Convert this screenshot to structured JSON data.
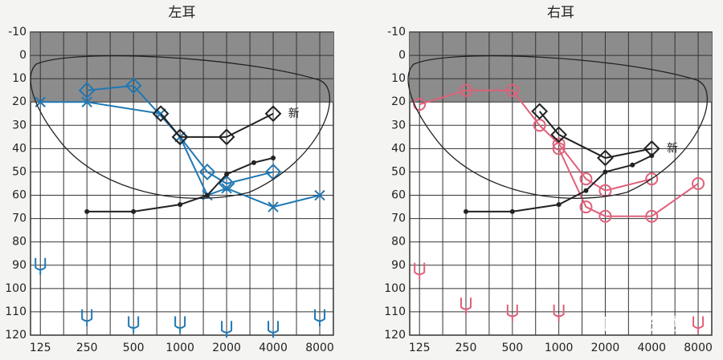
{
  "chart_data": [
    {
      "type": "line",
      "title": "左耳",
      "note": "新",
      "log_x": true,
      "grid": true,
      "xlim": [
        108,
        9800
      ],
      "xticks": [
        125,
        250,
        500,
        1000,
        2000,
        4000,
        8000
      ],
      "ylim": [
        -10,
        120
      ],
      "yticks": [
        -10,
        0,
        10,
        20,
        30,
        40,
        50,
        60,
        70,
        80,
        90,
        100,
        110,
        120
      ],
      "inverted_y": true,
      "shaded_band": [
        -10,
        20
      ],
      "series": [
        {
          "color": "#1f78b4",
          "marker": "x",
          "x": [
            125,
            250,
            750,
            1000,
            1500,
            2000,
            4000,
            8000
          ],
          "values": [
            20,
            20,
            25,
            35,
            60,
            57,
            65,
            60
          ]
        },
        {
          "color": "#1f78b4",
          "marker": "diamond",
          "x": [
            250,
            500,
            1000,
            1500,
            2000,
            4000
          ],
          "values": [
            15,
            13,
            35,
            50,
            55,
            50
          ]
        },
        {
          "color": "#222222",
          "marker": "diamond",
          "x": [
            750,
            1000,
            2000,
            4000
          ],
          "values": [
            25,
            35,
            35,
            25
          ]
        },
        {
          "color": "#222222",
          "marker": "dot",
          "x": [
            250,
            500,
            1000,
            1500,
            2000,
            3000,
            4000
          ],
          "values": [
            67,
            67,
            64,
            60,
            51,
            46,
            44
          ]
        },
        {
          "color": "#1f78b4",
          "marker": "u",
          "line": false,
          "x": [
            125,
            250,
            500,
            1000,
            2000,
            4000,
            8000
          ],
          "values": [
            90,
            112,
            115,
            115,
            117,
            117,
            112
          ]
        }
      ]
    },
    {
      "type": "line",
      "title": "右耳",
      "note": "新",
      "log_x": true,
      "grid": true,
      "xlim": [
        108,
        9800
      ],
      "xticks": [
        125,
        250,
        500,
        1000,
        2000,
        4000,
        8000
      ],
      "ylim": [
        -10,
        120
      ],
      "yticks": [
        -10,
        0,
        10,
        20,
        30,
        40,
        50,
        60,
        70,
        80,
        90,
        100,
        110,
        120
      ],
      "inverted_y": true,
      "shaded_band": [
        -10,
        20
      ],
      "series": [
        {
          "color": "#e0607a",
          "marker": "circle",
          "x": [
            125,
            250,
            500,
            750,
            1000,
            1500,
            2000,
            4000
          ],
          "values": [
            21,
            15,
            15,
            30,
            38,
            53,
            58,
            53
          ]
        },
        {
          "color": "#e0607a",
          "marker": "circle",
          "x": [
            1000,
            1500,
            2000,
            4000,
            8000
          ],
          "values": [
            40,
            65,
            69,
            69,
            55
          ]
        },
        {
          "color": "#222222",
          "marker": "diamond",
          "x": [
            750,
            1000,
            2000,
            4000
          ],
          "values": [
            24,
            34,
            44,
            40
          ]
        },
        {
          "color": "#222222",
          "marker": "dot",
          "x": [
            250,
            500,
            1000,
            1500,
            2000,
            3000,
            4000
          ],
          "values": [
            67,
            67,
            64,
            58,
            50,
            47,
            43
          ]
        },
        {
          "color": "#e0607a",
          "marker": "u",
          "line": false,
          "x": [
            125,
            250,
            500,
            1000,
            8000
          ],
          "values": [
            92,
            107,
            110,
            110,
            115
          ]
        }
      ]
    }
  ],
  "watermark": "知乎 @知否"
}
